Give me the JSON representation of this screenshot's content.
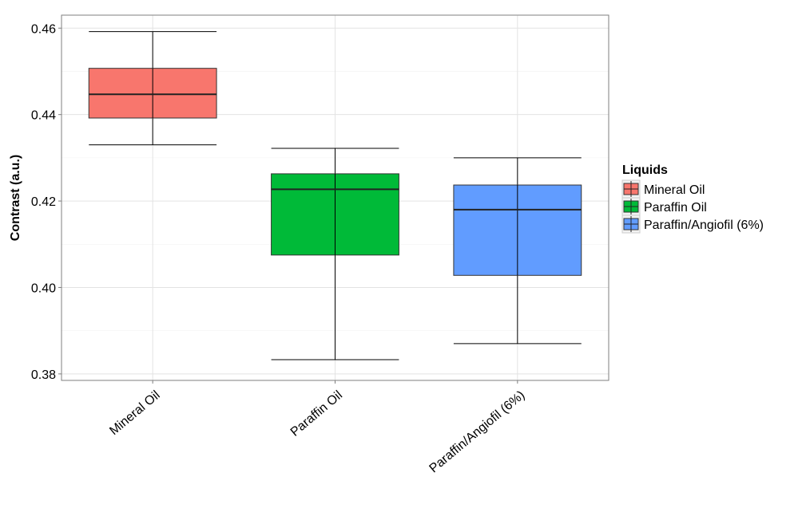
{
  "chart_data": {
    "type": "boxplot",
    "title": "",
    "xlabel": "",
    "ylabel": "Contrast (a.u.)",
    "ylim": [
      0.3785,
      0.463
    ],
    "yticks": [
      0.38,
      0.4,
      0.42,
      0.44,
      0.46
    ],
    "ytick_labels": [
      "0.38",
      "0.40",
      "0.42",
      "0.44",
      "0.46"
    ],
    "grid": true,
    "legend_position": "right",
    "legend_title": "Liquids",
    "categories": [
      "Mineral Oil",
      "Paraffin Oil",
      "Paraffin/Angiofil (6%)"
    ],
    "boxes": [
      {
        "category": "Mineral Oil",
        "min": 0.433,
        "q1": 0.4392,
        "median": 0.4447,
        "q3": 0.4507,
        "max": 0.4592,
        "color": "#F8766D"
      },
      {
        "category": "Paraffin Oil",
        "min": 0.3833,
        "q1": 0.4075,
        "median": 0.4227,
        "q3": 0.4263,
        "max": 0.4322,
        "color": "#00BA38"
      },
      {
        "category": "Paraffin/Angiofil (6%)",
        "min": 0.387,
        "q1": 0.4028,
        "median": 0.418,
        "q3": 0.4237,
        "max": 0.43,
        "color": "#619CFF"
      }
    ]
  }
}
